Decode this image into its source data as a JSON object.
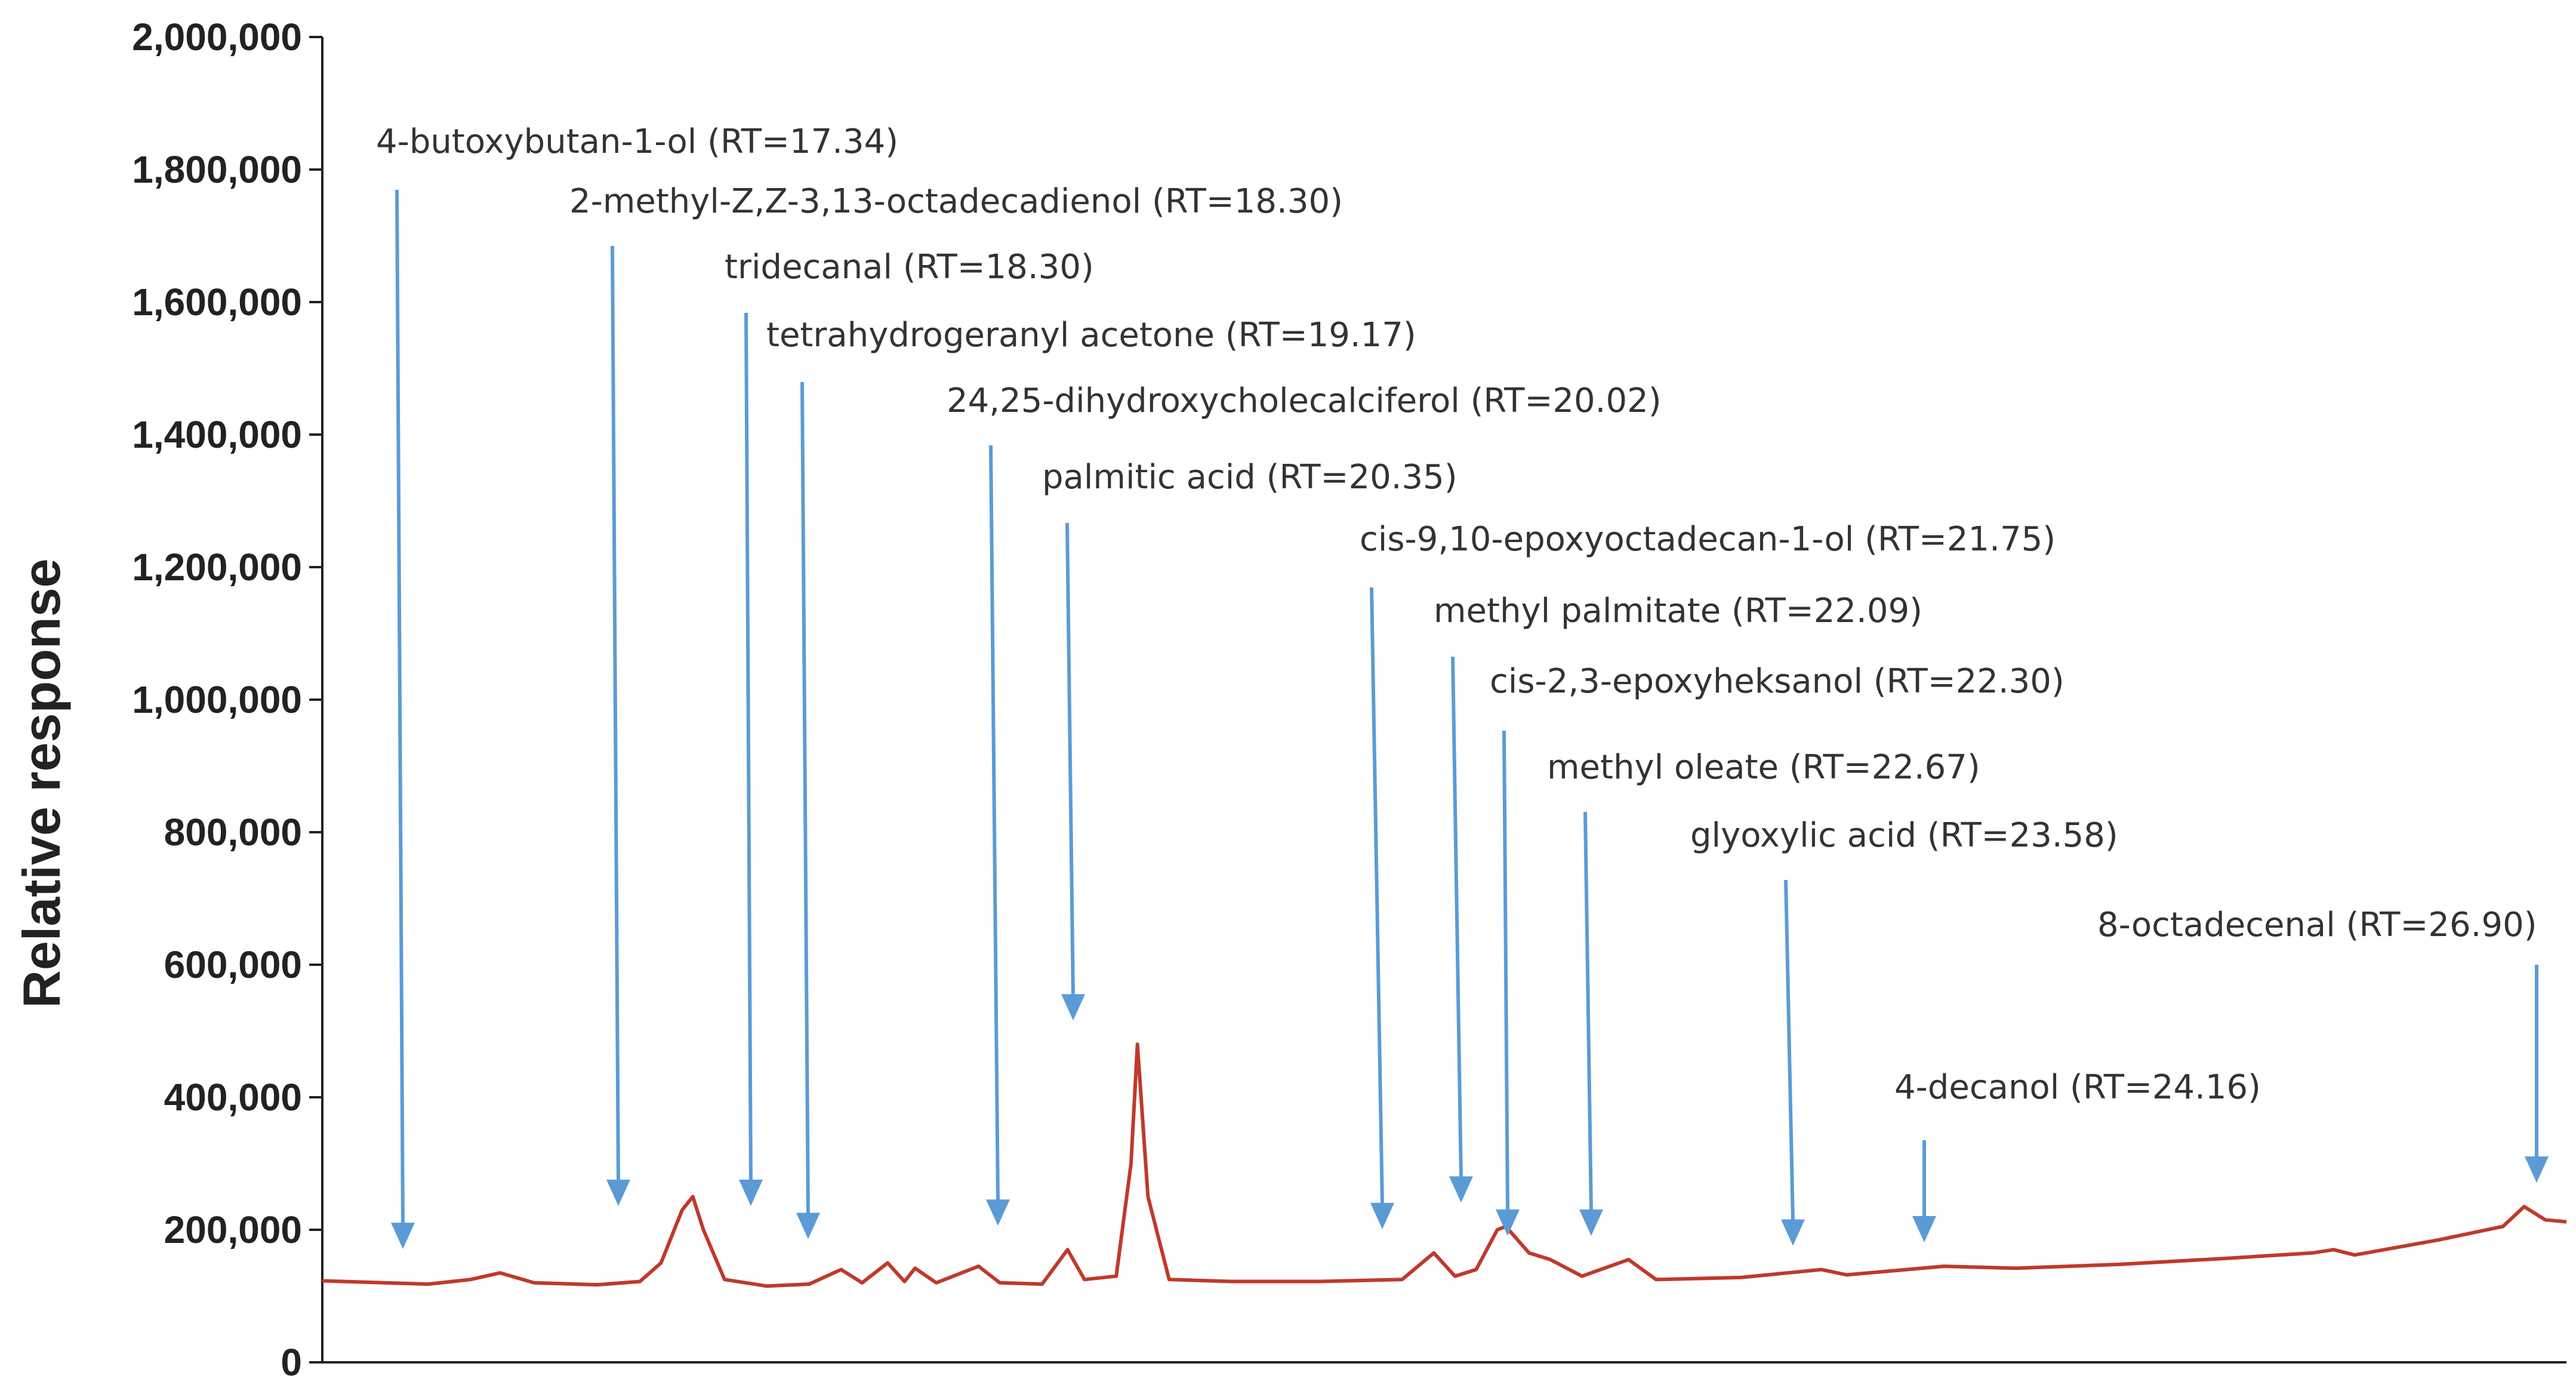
{
  "chart_data": {
    "type": "line",
    "title": "",
    "xlabel": "",
    "ylabel": "Relative response",
    "ylim": [
      0,
      2000000
    ],
    "yticks": [
      "0",
      "200,000",
      "400,000",
      "600,000",
      "800,000",
      "1,000,000",
      "1,200,000",
      "1,400,000",
      "1,600,000",
      "1,800,000",
      "2,000,000"
    ],
    "grid": false,
    "legend": "none",
    "colors": {
      "line": "#c0392b",
      "arrow": "#5b9bd5",
      "axis": "#222222",
      "text": "#333333"
    },
    "series": [
      {
        "values": [
          [
            16.5,
            123000
          ],
          [
            17.0,
            118000
          ],
          [
            17.2,
            125000
          ],
          [
            17.34,
            135000
          ],
          [
            17.5,
            120000
          ],
          [
            17.8,
            117000
          ],
          [
            18.0,
            122000
          ],
          [
            18.1,
            150000
          ],
          [
            18.2,
            230000
          ],
          [
            18.25,
            250000
          ],
          [
            18.3,
            200000
          ],
          [
            18.4,
            125000
          ],
          [
            18.6,
            115000
          ],
          [
            18.8,
            118000
          ],
          [
            18.95,
            140000
          ],
          [
            19.05,
            120000
          ],
          [
            19.17,
            150000
          ],
          [
            19.25,
            122000
          ],
          [
            19.3,
            142000
          ],
          [
            19.4,
            120000
          ],
          [
            19.6,
            145000
          ],
          [
            19.7,
            120000
          ],
          [
            19.9,
            118000
          ],
          [
            20.02,
            170000
          ],
          [
            20.1,
            125000
          ],
          [
            20.25,
            130000
          ],
          [
            20.32,
            300000
          ],
          [
            20.35,
            480000
          ],
          [
            20.4,
            250000
          ],
          [
            20.5,
            125000
          ],
          [
            20.8,
            122000
          ],
          [
            21.2,
            122000
          ],
          [
            21.6,
            125000
          ],
          [
            21.75,
            165000
          ],
          [
            21.85,
            130000
          ],
          [
            21.95,
            140000
          ],
          [
            22.05,
            200000
          ],
          [
            22.09,
            205000
          ],
          [
            22.2,
            165000
          ],
          [
            22.3,
            155000
          ],
          [
            22.45,
            130000
          ],
          [
            22.67,
            155000
          ],
          [
            22.8,
            125000
          ],
          [
            23.2,
            128000
          ],
          [
            23.58,
            140000
          ],
          [
            23.7,
            132000
          ],
          [
            24.16,
            145000
          ],
          [
            24.5,
            142000
          ],
          [
            25.0,
            148000
          ],
          [
            25.5,
            157000
          ],
          [
            25.9,
            165000
          ],
          [
            26.0,
            170000
          ],
          [
            26.1,
            162000
          ],
          [
            26.5,
            185000
          ],
          [
            26.8,
            205000
          ],
          [
            26.9,
            235000
          ],
          [
            27.0,
            215000
          ],
          [
            27.1,
            212000
          ]
        ]
      }
    ],
    "annotations": [
      {
        "label": "4-butoxybutan-1-ol (RT=17.34)",
        "rt": 17.34
      },
      {
        "label": "2-methyl-Z,Z-3,13-octadecadienol (RT=18.30)",
        "rt": 18.3
      },
      {
        "label": "tridecanal (RT=18.30)",
        "rt": 18.3
      },
      {
        "label": "tetrahydrogeranyl acetone (RT=19.17)",
        "rt": 19.17
      },
      {
        "label": "24,25-dihydroxycholecalciferol (RT=20.02)",
        "rt": 20.02
      },
      {
        "label": "palmitic acid (RT=20.35)",
        "rt": 20.35
      },
      {
        "label": "cis-9,10-epoxyoctadecan-1-ol (RT=21.75)",
        "rt": 21.75
      },
      {
        "label": "methyl palmitate (RT=22.09)",
        "rt": 22.09
      },
      {
        "label": "cis-2,3-epoxyheksanol (RT=22.30)",
        "rt": 22.3
      },
      {
        "label": "methyl oleate (RT=22.67)",
        "rt": 22.67
      },
      {
        "label": "glyoxylic acid (RT=23.58)",
        "rt": 23.58
      },
      {
        "label": "4-decanol (RT=24.16)",
        "rt": 24.16
      },
      {
        "label": "8-octadecenal (RT=26.90)",
        "rt": 26.9
      }
    ]
  }
}
